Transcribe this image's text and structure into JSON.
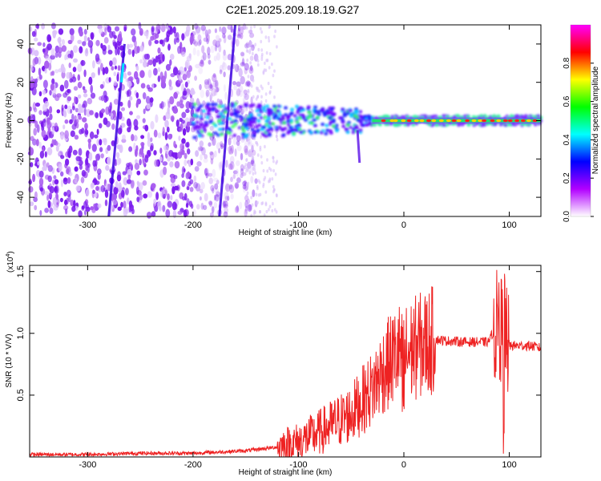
{
  "title": "C2E1.2025.209.18.19.G27",
  "chart_data": [
    {
      "type": "heatmap",
      "xlabel": "Height of straight line (km)",
      "ylabel": "Frequency (Hz)",
      "xlim": [
        -355,
        130
      ],
      "ylim": [
        -50,
        50
      ],
      "xticks": [
        -300,
        -200,
        -100,
        0,
        100
      ],
      "yticks": [
        -40,
        -20,
        0,
        20,
        40
      ],
      "colorbar": {
        "label": "Normalized spectral amplitude",
        "range": [
          0,
          1
        ],
        "ticks": [
          "0.0",
          "0.2",
          "0.4",
          "0.6",
          "0.8"
        ],
        "colors": [
          "#ffffff",
          "#b200ff",
          "#0000ff",
          "#00ffff",
          "#00ff00",
          "#ffff00",
          "#ff0000",
          "#ff00ff"
        ]
      },
      "features": [
        {
          "kind": "noise",
          "x_range": [
            -355,
            -140
          ],
          "f_range": [
            -50,
            50
          ]
        },
        {
          "kind": "streak",
          "x": [
            -280,
            -265
          ],
          "f": [
            -50,
            40
          ]
        },
        {
          "kind": "streak",
          "x": [
            -175,
            -160
          ],
          "f": [
            -50,
            50
          ]
        },
        {
          "kind": "signal_band",
          "x_range": [
            -200,
            130
          ],
          "center_hz": 0
        }
      ]
    },
    {
      "type": "line",
      "xlabel": "Height of straight line (km)",
      "ylabel": "SNR (10 * V/V)",
      "y_multiplier": "(x10",
      "y_multiplier_exp": "4",
      "y_multiplier_close": ")",
      "xlim": [
        -355,
        130
      ],
      "ylim": [
        0,
        1.55
      ],
      "xticks": [
        -300,
        -200,
        -100,
        0,
        100
      ],
      "yticks": [
        0.5,
        1.0,
        1.5
      ],
      "ytick_labels": [
        "0.5",
        "1.0",
        "1.5"
      ],
      "color": "#ee2222",
      "series": [
        {
          "x": [
            -355,
            -300,
            -250,
            -200,
            -150,
            -120,
            -100,
            -80,
            -60,
            -50,
            -40,
            -30,
            -20,
            -10,
            -5,
            0,
            10,
            20,
            30,
            40,
            60,
            80,
            90,
            95,
            100,
            110,
            120,
            130
          ],
          "y": [
            0.02,
            0.02,
            0.03,
            0.03,
            0.05,
            0.08,
            0.12,
            0.2,
            0.3,
            0.35,
            0.45,
            0.55,
            0.7,
            0.8,
            0.85,
            0.82,
            0.88,
            0.92,
            0.95,
            0.94,
            0.93,
            0.93,
            1.1,
            0.95,
            0.9,
            0.9,
            0.9,
            0.88
          ]
        }
      ]
    }
  ]
}
